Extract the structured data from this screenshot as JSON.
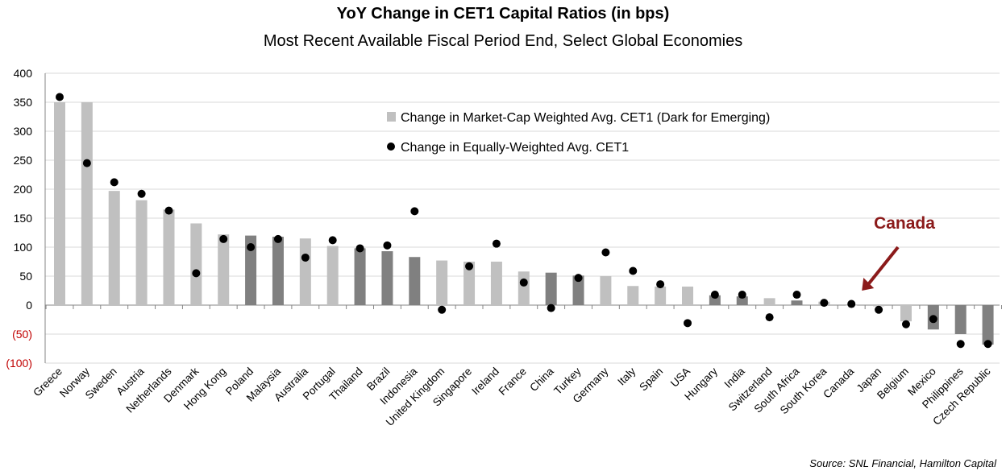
{
  "chart_data": {
    "type": "bar",
    "title": "YoY Change in CET1 Capital Ratios (in bps)",
    "subtitle": "Most Recent Available Fiscal Period End, Select Global Economies",
    "ylim": [
      -100,
      400
    ],
    "yticks": [
      400,
      350,
      300,
      250,
      200,
      150,
      100,
      50,
      0,
      -50,
      -100
    ],
    "ytick_labels": [
      "400",
      "350",
      "300",
      "250",
      "200",
      "150",
      "100",
      "50",
      "0",
      "(50)",
      "(100)"
    ],
    "grid": true,
    "legend_position": "top-center",
    "categories": [
      "Greece",
      "Norway",
      "Sweden",
      "Austria",
      "Netherlands",
      "Denmark",
      "Hong Kong",
      "Poland",
      "Malaysia",
      "Australia",
      "Portugal",
      "Thailand",
      "Brazil",
      "Indonesia",
      "United Kingdom",
      "Singapore",
      "Ireland",
      "France",
      "China",
      "Turkey",
      "Germany",
      "Italy",
      "Spain",
      "USA",
      "Hungary",
      "India",
      "Switzerland",
      "South Africa",
      "South Korea",
      "Canada",
      "Japan",
      "Belgium",
      "Mexico",
      "Philippines",
      "Czech Republic"
    ],
    "series": [
      {
        "name": "Change in Market-Cap Weighted Avg. CET1 (Dark for Emerging)",
        "kind": "bar",
        "values": [
          350,
          350,
          197,
          181,
          165,
          141,
          122,
          120,
          118,
          115,
          102,
          98,
          93,
          83,
          77,
          75,
          75,
          58,
          56,
          51,
          50,
          33,
          32,
          32,
          17,
          15,
          12,
          8,
          6,
          0,
          -2,
          -28,
          -42,
          -50,
          -68
        ],
        "emerging": [
          false,
          false,
          false,
          false,
          false,
          false,
          false,
          true,
          true,
          false,
          false,
          true,
          true,
          true,
          false,
          false,
          false,
          false,
          true,
          true,
          false,
          false,
          false,
          false,
          true,
          true,
          false,
          true,
          false,
          false,
          false,
          false,
          true,
          true,
          true
        ]
      },
      {
        "name": "Change in Equally-Weighted Avg. CET1",
        "kind": "dot",
        "values": [
          359,
          245,
          212,
          192,
          163,
          55,
          114,
          100,
          114,
          82,
          112,
          98,
          103,
          162,
          -8,
          67,
          106,
          39,
          -5,
          47,
          91,
          59,
          36,
          -31,
          18,
          18,
          -21,
          18,
          4,
          2,
          -8,
          -33,
          -24,
          -67,
          -67
        ]
      }
    ],
    "colors": {
      "developed": "#c0c0c0",
      "emerging": "#808080",
      "dot": "#000000",
      "callout": "#8b1a1a",
      "negative_tick": "#c00000",
      "grid": "#d9d9d9"
    },
    "annotation": {
      "text": "Canada",
      "target": "Canada"
    },
    "source": "Source: SNL Financial, Hamilton Capital"
  }
}
